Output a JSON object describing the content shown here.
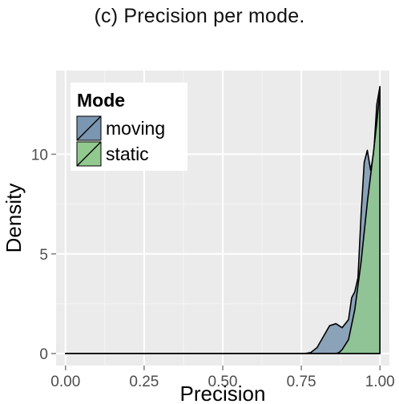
{
  "caption": "(c) Precision per mode.",
  "chart_data": {
    "type": "area",
    "title": "",
    "xlabel": "Precision",
    "ylabel": "Density",
    "xlim": [
      -0.03,
      1.03
    ],
    "ylim": [
      -0.6,
      14.2
    ],
    "x_ticks": [
      0.0,
      0.25,
      0.5,
      0.75,
      1.0
    ],
    "x_tick_labels": [
      "0.00",
      "0.25",
      "0.50",
      "0.75",
      "1.00"
    ],
    "y_ticks": [
      0,
      5,
      10
    ],
    "y_tick_labels": [
      "0",
      "5",
      "10"
    ],
    "grid": true,
    "legend": {
      "title": "Mode",
      "position": "top-left"
    },
    "series": [
      {
        "name": "moving",
        "color": "#7a96b0",
        "points": [
          [
            0.0,
            0
          ],
          [
            0.76,
            0
          ],
          [
            0.78,
            0.05
          ],
          [
            0.8,
            0.3
          ],
          [
            0.82,
            0.85
          ],
          [
            0.84,
            1.4
          ],
          [
            0.86,
            1.5
          ],
          [
            0.88,
            1.3
          ],
          [
            0.9,
            1.7
          ],
          [
            0.91,
            2.8
          ],
          [
            0.92,
            3.1
          ],
          [
            0.93,
            3.8
          ],
          [
            0.94,
            7.0
          ],
          [
            0.95,
            9.6
          ],
          [
            0.96,
            10.2
          ],
          [
            0.97,
            9.2
          ],
          [
            0.98,
            10.0
          ],
          [
            0.99,
            12.5
          ],
          [
            1.0,
            13.4
          ]
        ]
      },
      {
        "name": "static",
        "color": "#91c98f",
        "points": [
          [
            0.0,
            0
          ],
          [
            0.86,
            0
          ],
          [
            0.87,
            0.05
          ],
          [
            0.88,
            0.2
          ],
          [
            0.9,
            0.7
          ],
          [
            0.92,
            2.2
          ],
          [
            0.94,
            4.6
          ],
          [
            0.96,
            7.6
          ],
          [
            0.98,
            10.2
          ],
          [
            0.99,
            11.6
          ],
          [
            1.0,
            13.2
          ]
        ]
      }
    ]
  }
}
